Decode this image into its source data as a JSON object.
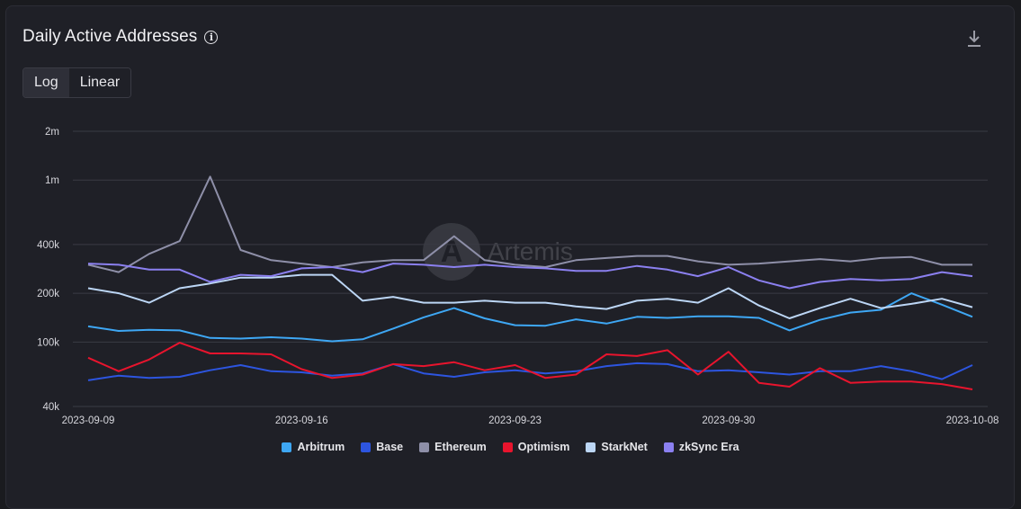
{
  "header": {
    "title": "Daily Active Addresses",
    "info_icon": "info-circle-icon",
    "download_icon": "download-icon"
  },
  "scale_toggle": {
    "options": [
      "Log",
      "Linear"
    ],
    "selected": "Log"
  },
  "watermark": {
    "text": "Artemis",
    "logo_letter": "A"
  },
  "colors": {
    "background": "#1f2027",
    "grid": "#3a3b44"
  },
  "chart_data": {
    "type": "line",
    "y_scale": "log",
    "ylim": [
      40000,
      2000000
    ],
    "y_ticks": [
      {
        "value": 40000,
        "label": "40k"
      },
      {
        "value": 100000,
        "label": "100k"
      },
      {
        "value": 200000,
        "label": "200k"
      },
      {
        "value": 400000,
        "label": "400k"
      },
      {
        "value": 1000000,
        "label": "1m"
      },
      {
        "value": 2000000,
        "label": "2m"
      }
    ],
    "x_tick_labels": [
      "2023-09-09",
      "2023-09-16",
      "2023-09-23",
      "2023-09-30",
      "2023-10-08"
    ],
    "x_tick_indices": [
      0,
      7,
      14,
      21,
      29
    ],
    "grid": true,
    "legend_position": "bottom-center",
    "x": [
      "2023-09-09",
      "2023-09-10",
      "2023-09-11",
      "2023-09-12",
      "2023-09-13",
      "2023-09-14",
      "2023-09-15",
      "2023-09-16",
      "2023-09-17",
      "2023-09-18",
      "2023-09-19",
      "2023-09-20",
      "2023-09-21",
      "2023-09-22",
      "2023-09-23",
      "2023-09-24",
      "2023-09-25",
      "2023-09-26",
      "2023-09-27",
      "2023-09-28",
      "2023-09-29",
      "2023-09-30",
      "2023-10-01",
      "2023-10-02",
      "2023-10-03",
      "2023-10-04",
      "2023-10-05",
      "2023-10-06",
      "2023-10-07",
      "2023-10-08"
    ],
    "series": [
      {
        "name": "Arbitrum",
        "color": "#3ea7f4",
        "values": [
          125000,
          117000,
          119000,
          118000,
          106000,
          105000,
          107000,
          105000,
          101000,
          104000,
          121000,
          142000,
          162000,
          140000,
          127000,
          126000,
          138000,
          130000,
          143000,
          141000,
          144000,
          144000,
          141000,
          118000,
          137000,
          152000,
          158000,
          200000,
          170000,
          143000
        ]
      },
      {
        "name": "Base",
        "color": "#2d55e0",
        "values": [
          58000,
          62000,
          60000,
          61000,
          67000,
          72000,
          66000,
          65000,
          62000,
          64000,
          73000,
          64000,
          61000,
          65000,
          67000,
          64000,
          66000,
          71000,
          74000,
          73000,
          66000,
          67000,
          65000,
          63000,
          66000,
          66000,
          71000,
          66000,
          59000,
          72000
        ]
      },
      {
        "name": "Ethereum",
        "color": "#8e8fa8",
        "values": [
          300000,
          270000,
          350000,
          420000,
          1050000,
          370000,
          320000,
          305000,
          290000,
          310000,
          320000,
          320000,
          450000,
          320000,
          300000,
          290000,
          320000,
          330000,
          340000,
          340000,
          315000,
          300000,
          305000,
          315000,
          325000,
          315000,
          330000,
          335000,
          300000,
          300000
        ]
      },
      {
        "name": "Optimism",
        "color": "#e8142d",
        "values": [
          80000,
          66000,
          78000,
          99000,
          85000,
          85000,
          84000,
          68000,
          60000,
          63000,
          73000,
          71000,
          75000,
          67000,
          72000,
          60000,
          63000,
          84000,
          82000,
          89000,
          63000,
          87000,
          56000,
          53000,
          69000,
          56000,
          57000,
          57000,
          55000,
          51000
        ]
      },
      {
        "name": "StarkNet",
        "color": "#bcd6f5",
        "values": [
          215000,
          200000,
          175000,
          215000,
          230000,
          250000,
          250000,
          260000,
          260000,
          180000,
          190000,
          175000,
          175000,
          180000,
          175000,
          175000,
          166000,
          160000,
          180000,
          185000,
          175000,
          215000,
          168000,
          140000,
          162000,
          185000,
          162000,
          172000,
          185000,
          164000
        ]
      },
      {
        "name": "zkSync Era",
        "color": "#8b80f0",
        "values": [
          305000,
          300000,
          280000,
          280000,
          235000,
          260000,
          255000,
          285000,
          290000,
          270000,
          305000,
          300000,
          290000,
          300000,
          290000,
          285000,
          275000,
          275000,
          295000,
          280000,
          255000,
          290000,
          240000,
          215000,
          235000,
          245000,
          240000,
          245000,
          270000,
          255000
        ]
      }
    ]
  }
}
